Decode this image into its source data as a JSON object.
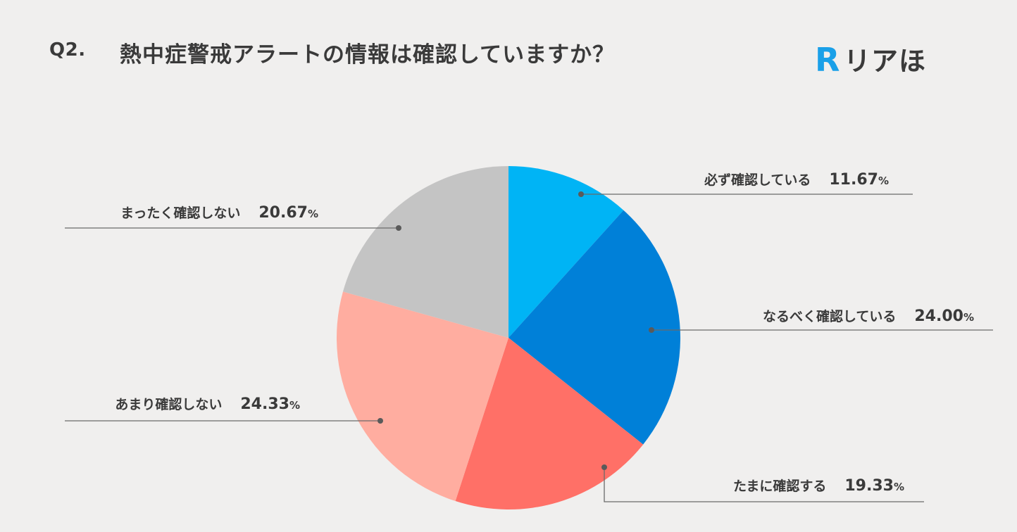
{
  "header": {
    "question_number": "Q2.",
    "title": "熱中症警戒アラートの情報は確認していますか？"
  },
  "logo": {
    "mark": "R",
    "text": "リアほ",
    "color": "#1aa0e8"
  },
  "chart_data": {
    "type": "pie",
    "title": "熱中症警戒アラートの情報は確認していますか？",
    "categories": [
      "必ず確認している",
      "なるべく確認している",
      "たまに確認する",
      "あまり確認しない",
      "まったく確認しない"
    ],
    "values": [
      11.67,
      24.0,
      19.33,
      24.33,
      20.67
    ],
    "value_labels": [
      "11.67",
      "24.00",
      "19.33",
      "24.33",
      "20.67"
    ],
    "unit": "%",
    "colors": [
      "#00b4f5",
      "#0080d8",
      "#ff7067",
      "#ffada0",
      "#c4c4c4"
    ],
    "start_angle": "12 o'clock",
    "direction": "clockwise",
    "legend": "none"
  }
}
